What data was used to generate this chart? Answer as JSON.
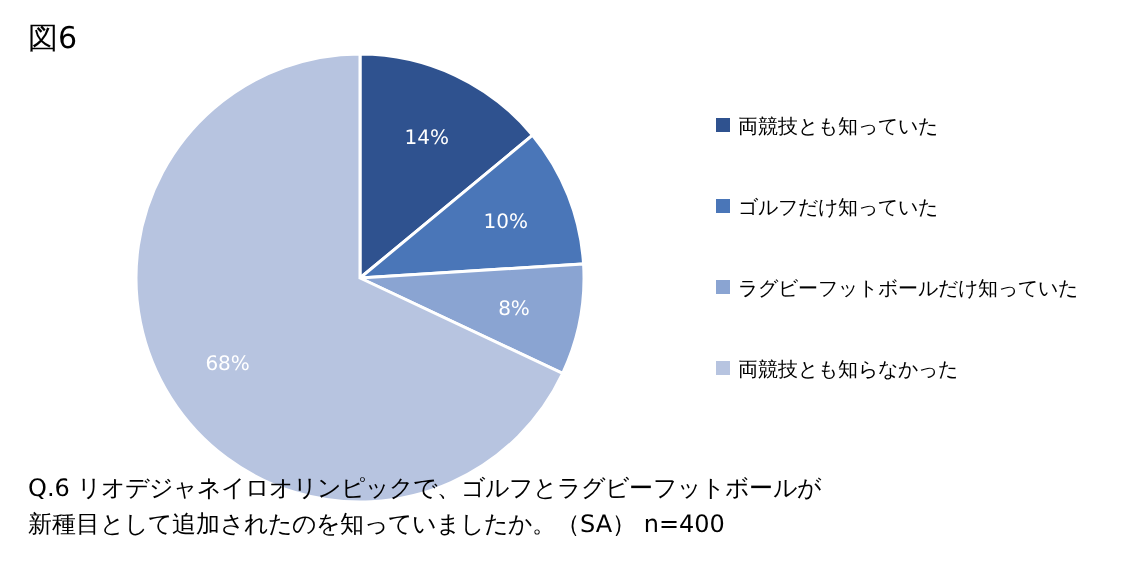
{
  "chart_data": {
    "type": "pie",
    "title": "図6",
    "categories": [
      "両競技とも知っていた",
      "ゴルフだけ知っていた",
      "ラグビーフットボールだけ知っていた",
      "両競技とも知らなかった"
    ],
    "values": [
      14,
      10,
      8,
      68
    ],
    "colors": [
      "#2f528f",
      "#4a76b8",
      "#8aa4d2",
      "#b7c4e0"
    ],
    "value_labels": [
      "14%",
      "10%",
      "8%",
      "68%"
    ],
    "legend": "right",
    "annotations": [
      "Q.6 リオデジャネイロオリンピックで、ゴルフとラグビーフットボールが",
      "新種目として追加されたのを知っていましたか。（SA） n=400"
    ]
  }
}
